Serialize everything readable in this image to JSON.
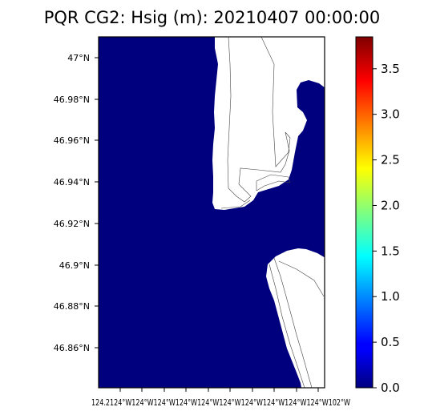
{
  "title": "PQR CG2: Hsig (m): 20210407 00:00:00",
  "map": {
    "water_color": "#00007f",
    "land_color": "#ffffff",
    "lat_ticks": [
      "47°N",
      "46.98°N",
      "46.96°N",
      "46.94°N",
      "46.92°N",
      "46.9°N",
      "46.88°N",
      "46.86°N"
    ],
    "lon_tick_text": "124.2124°W124°W124°W124°W124°W124°W124°W124°W124°W124°W102°W"
  },
  "colorbar": {
    "colormap": "jet",
    "range": [
      0.0,
      3.85
    ],
    "ticks": [
      "0.0",
      "0.5",
      "1.0",
      "1.5",
      "2.0",
      "2.5",
      "3.0",
      "3.5"
    ]
  }
}
